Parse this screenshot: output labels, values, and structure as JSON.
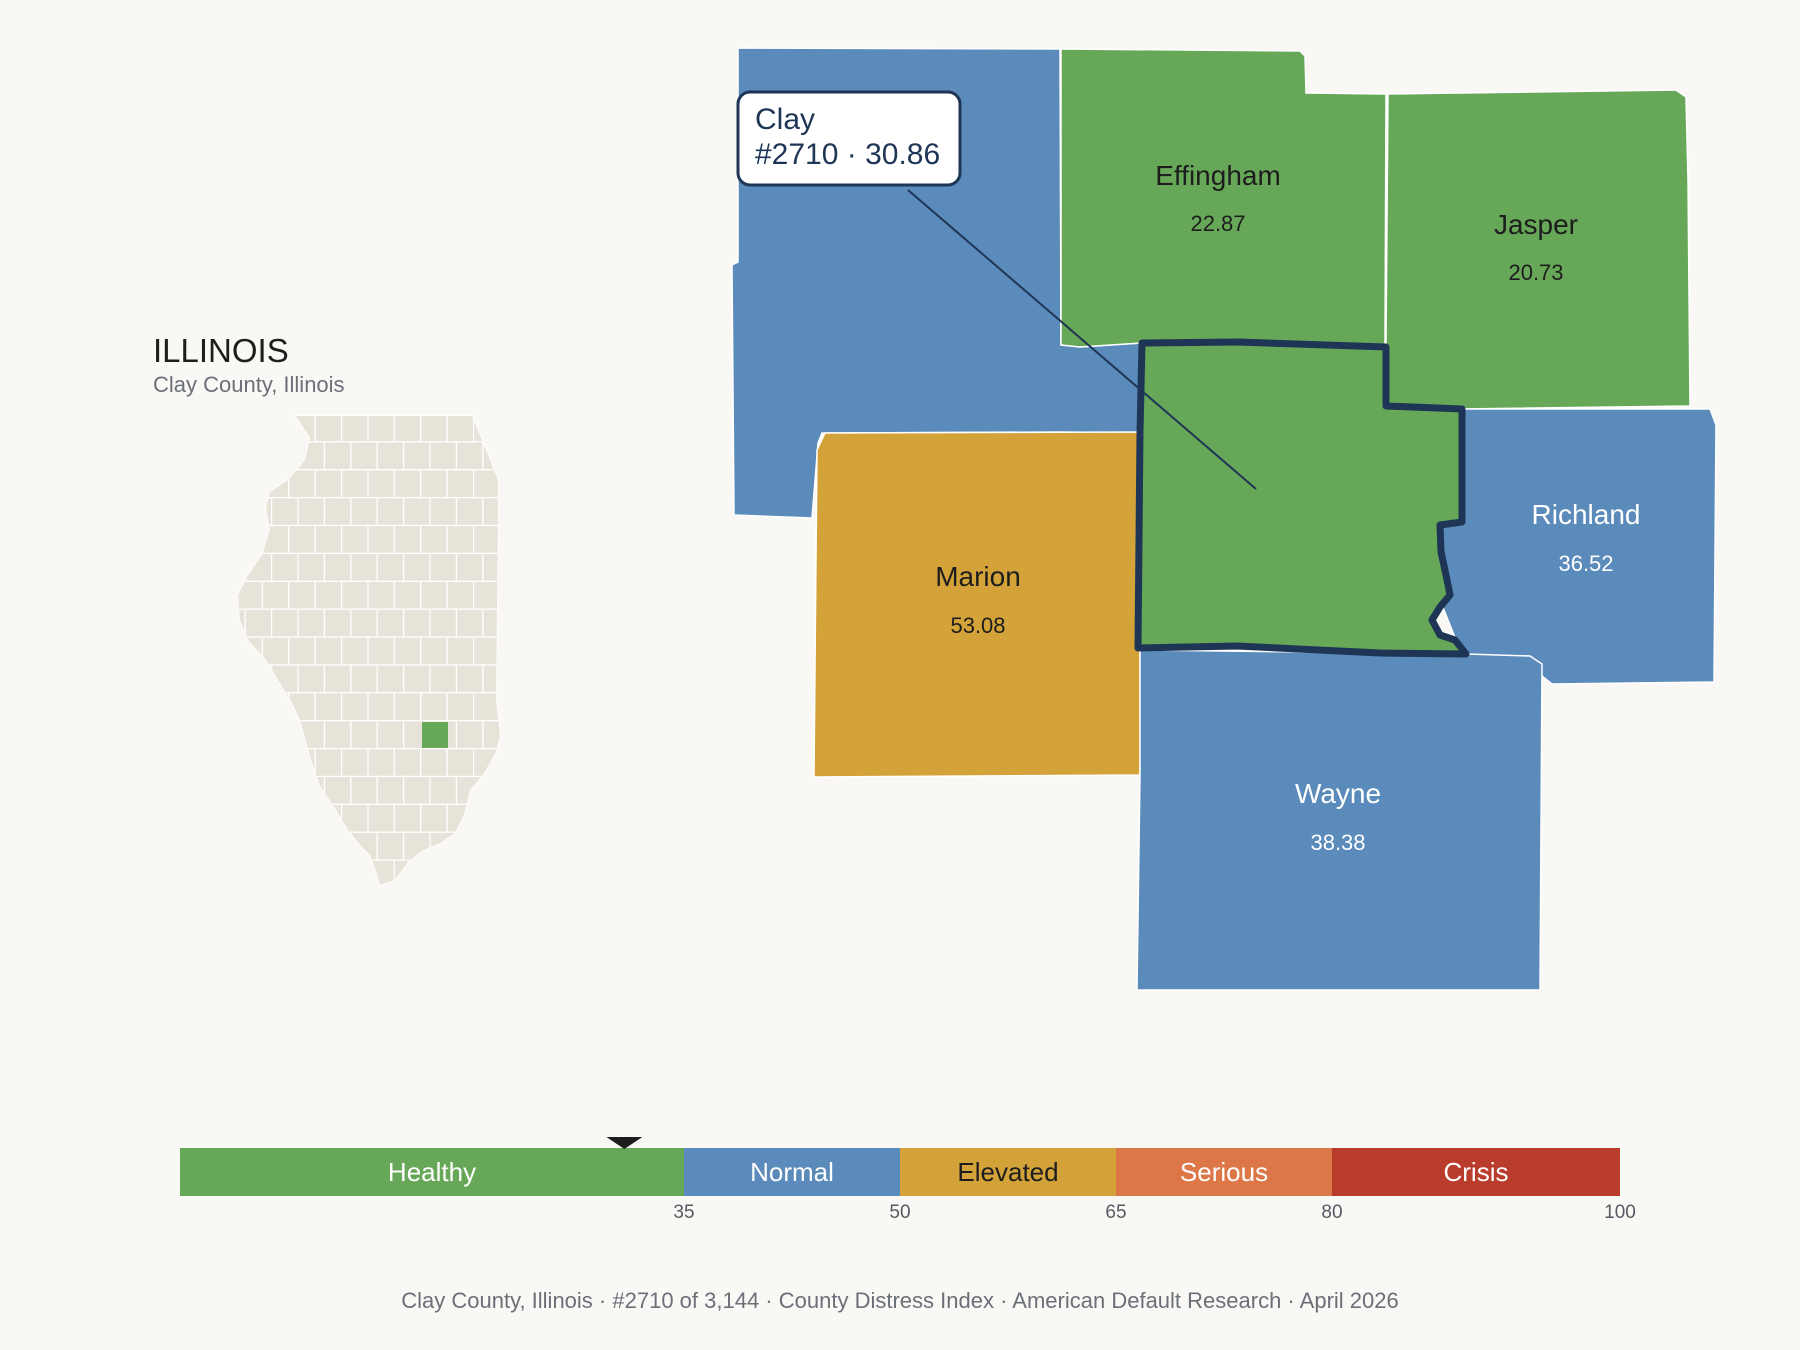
{
  "state": {
    "title": "ILLINOIS",
    "subtitle": "Clay County, Illinois",
    "highlight_color": "#67a758",
    "base_color": "#e8e3d9"
  },
  "callout": {
    "name": "Clay",
    "detail": "#2710 · 30.86"
  },
  "counties": [
    {
      "id": "fayette",
      "name": "",
      "value": "",
      "tier": "normal",
      "color": "#5b8bba"
    },
    {
      "id": "effingham",
      "name": "Effingham",
      "value": "22.87",
      "tier": "healthy",
      "color": "#67a758"
    },
    {
      "id": "jasper",
      "name": "Jasper",
      "value": "20.73",
      "tier": "healthy",
      "color": "#67a758"
    },
    {
      "id": "clay",
      "name": "",
      "value": "",
      "tier": "healthy",
      "color": "#67a758",
      "selected": true
    },
    {
      "id": "richland",
      "name": "Richland",
      "value": "36.52",
      "tier": "normal",
      "color": "#5b8bba"
    },
    {
      "id": "marion",
      "name": "Marion",
      "value": "53.08",
      "tier": "elevated",
      "color": "#d3a33a"
    },
    {
      "id": "wayne",
      "name": "Wayne",
      "value": "38.38",
      "tier": "normal",
      "color": "#5b8bba"
    }
  ],
  "legend": {
    "min": 0,
    "max": 100,
    "marker_value": 30.86,
    "bands": [
      {
        "label": "Healthy",
        "from": 0,
        "to": 35,
        "color": "#67a758",
        "text_color": "#ffffff"
      },
      {
        "label": "Normal",
        "from": 35,
        "to": 50,
        "color": "#5b8bba",
        "text_color": "#ffffff"
      },
      {
        "label": "Elevated",
        "from": 50,
        "to": 65,
        "color": "#d3a33a",
        "text_color": "#1d1d1d"
      },
      {
        "label": "Serious",
        "from": 65,
        "to": 80,
        "color": "#dd7747",
        "text_color": "#ffffff"
      },
      {
        "label": "Crisis",
        "from": 80,
        "to": 100,
        "color": "#b93c2c",
        "text_color": "#ffffff"
      }
    ],
    "ticks": [
      "35",
      "50",
      "65",
      "80",
      "100"
    ]
  },
  "footer": {
    "items": [
      "Clay County, Illinois",
      "#2710 of 3,144",
      "County Distress Index",
      "American Default Research",
      "April 2026"
    ],
    "separator": "·"
  }
}
